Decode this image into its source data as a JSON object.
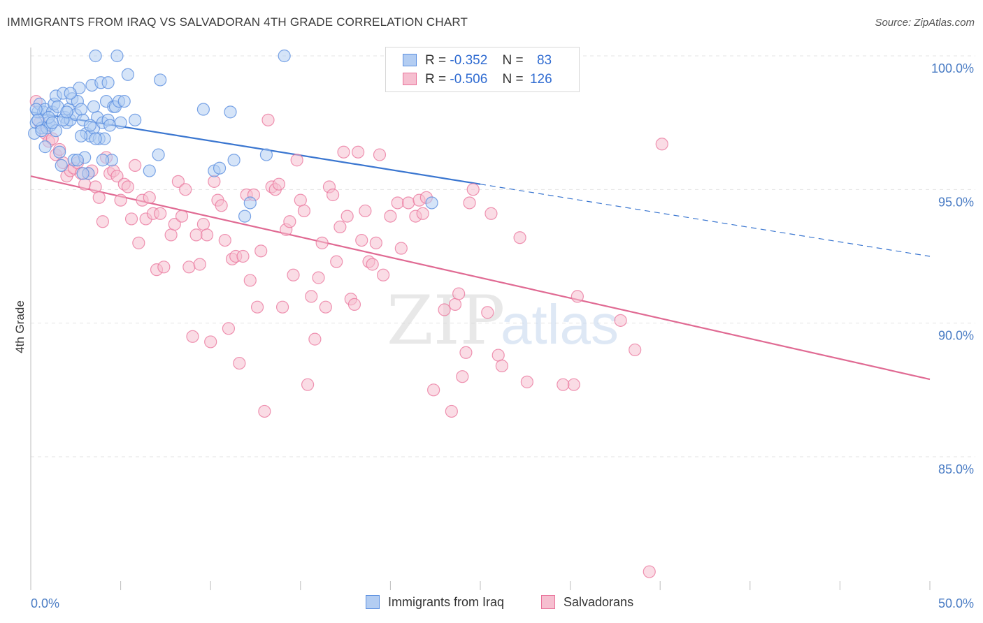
{
  "title": "IMMIGRANTS FROM IRAQ VS SALVADORAN 4TH GRADE CORRELATION CHART",
  "source": "Source: ZipAtlas.com",
  "watermark": {
    "zip": "ZIP",
    "atlas": "atlas"
  },
  "colors": {
    "blue": "#5b8fe0",
    "blue_fill": "#b3cdf2",
    "blue_line": "#3a76d0",
    "pink": "#e9729a",
    "pink_fill": "#f6bfd0",
    "pink_line": "#e06a93"
  },
  "legend": {
    "rows": [
      {
        "r_label": "R =",
        "r_value": "-0.352",
        "n_label": "N =",
        "n_value": "83"
      },
      {
        "r_label": "R =",
        "r_value": "-0.506",
        "n_label": "N =",
        "n_value": "126"
      }
    ]
  },
  "bottom_legend": {
    "series1": "Immigrants from Iraq",
    "series2": "Salvadorans"
  },
  "chart_data": {
    "type": "scatter",
    "title": "IMMIGRANTS FROM IRAQ VS SALVADORAN 4TH GRADE CORRELATION CHART",
    "xlabel": "",
    "ylabel": "4th Grade",
    "xlim": [
      0,
      50
    ],
    "ylim": [
      80.5,
      100.8
    ],
    "x_tick_labels": [
      "0.0%",
      "50.0%"
    ],
    "y_ticks": [
      85,
      90,
      95,
      100
    ],
    "y_tick_labels": [
      "85.0%",
      "90.0%",
      "95.0%",
      "100.0%"
    ],
    "grid": true,
    "legend_placement": "top-center",
    "series": [
      {
        "name": "Immigrants from Iraq",
        "r": -0.352,
        "n": 83,
        "trend": {
          "x_solid": [
            0,
            25
          ],
          "y_solid": [
            97.9,
            95.2
          ],
          "x_dash": [
            25,
            50
          ],
          "y_dash": [
            95.2,
            92.5
          ]
        },
        "points": [
          [
            0.2,
            97.1
          ],
          [
            0.3,
            97.5
          ],
          [
            0.4,
            97.9
          ],
          [
            0.5,
            98.2
          ],
          [
            0.6,
            97.3
          ],
          [
            0.7,
            97.9
          ],
          [
            0.8,
            98.0
          ],
          [
            0.9,
            97.3
          ],
          [
            1.0,
            97.5
          ],
          [
            1.1,
            97.4
          ],
          [
            1.2,
            97.9
          ],
          [
            1.3,
            98.2
          ],
          [
            1.4,
            98.5
          ],
          [
            1.5,
            98.1
          ],
          [
            1.6,
            96.4
          ],
          [
            1.7,
            95.9
          ],
          [
            1.8,
            98.6
          ],
          [
            1.9,
            97.7
          ],
          [
            2.0,
            97.5
          ],
          [
            2.1,
            98.0
          ],
          [
            2.2,
            97.6
          ],
          [
            2.3,
            98.4
          ],
          [
            2.4,
            96.1
          ],
          [
            2.5,
            97.8
          ],
          [
            2.6,
            98.3
          ],
          [
            2.7,
            98.8
          ],
          [
            2.8,
            98.0
          ],
          [
            2.9,
            97.6
          ],
          [
            3.0,
            96.2
          ],
          [
            3.1,
            97.1
          ],
          [
            3.2,
            95.6
          ],
          [
            3.3,
            97.0
          ],
          [
            3.4,
            98.9
          ],
          [
            3.5,
            97.3
          ],
          [
            3.6,
            100.0
          ],
          [
            3.7,
            97.7
          ],
          [
            3.8,
            96.9
          ],
          [
            3.9,
            99.0
          ],
          [
            4.0,
            97.5
          ],
          [
            4.1,
            96.9
          ],
          [
            4.2,
            98.3
          ],
          [
            4.3,
            97.6
          ],
          [
            4.4,
            97.4
          ],
          [
            4.5,
            96.1
          ],
          [
            4.6,
            98.1
          ],
          [
            4.7,
            98.1
          ],
          [
            4.8,
            100.0
          ],
          [
            4.9,
            98.3
          ],
          [
            5.0,
            97.5
          ],
          [
            5.2,
            98.3
          ],
          [
            5.4,
            99.3
          ],
          [
            5.8,
            97.6
          ],
          [
            6.6,
            95.7
          ],
          [
            7.1,
            96.3
          ],
          [
            7.2,
            99.1
          ],
          [
            9.6,
            98.0
          ],
          [
            10.2,
            95.7
          ],
          [
            10.5,
            95.8
          ],
          [
            11.1,
            97.9
          ],
          [
            11.3,
            96.1
          ],
          [
            11.9,
            94.0
          ],
          [
            12.2,
            94.5
          ],
          [
            13.1,
            96.3
          ],
          [
            14.1,
            100.0
          ],
          [
            22.3,
            94.5
          ],
          [
            0.3,
            98.0
          ],
          [
            0.6,
            97.2
          ],
          [
            0.8,
            96.6
          ],
          [
            1.0,
            97.7
          ],
          [
            1.4,
            97.2
          ],
          [
            1.8,
            97.6
          ],
          [
            2.2,
            98.6
          ],
          [
            2.6,
            96.1
          ],
          [
            2.9,
            95.6
          ],
          [
            3.3,
            97.4
          ],
          [
            3.6,
            96.9
          ],
          [
            4.0,
            96.1
          ],
          [
            0.4,
            97.6
          ],
          [
            1.2,
            97.5
          ],
          [
            2.0,
            97.9
          ],
          [
            2.8,
            97.0
          ],
          [
            3.5,
            98.1
          ],
          [
            4.3,
            99.0
          ]
        ]
      },
      {
        "name": "Salvadorans",
        "r": -0.506,
        "n": 126,
        "trend": {
          "x": [
            0,
            50
          ],
          "y": [
            95.5,
            87.9
          ]
        },
        "points": [
          [
            0.3,
            98.3
          ],
          [
            0.5,
            97.5
          ],
          [
            0.8,
            97.1
          ],
          [
            1.0,
            96.8
          ],
          [
            1.2,
            96.9
          ],
          [
            1.4,
            96.3
          ],
          [
            1.6,
            96.5
          ],
          [
            1.8,
            96.0
          ],
          [
            2.0,
            95.5
          ],
          [
            2.2,
            95.7
          ],
          [
            2.4,
            95.8
          ],
          [
            2.6,
            96.0
          ],
          [
            2.8,
            95.6
          ],
          [
            3.0,
            95.2
          ],
          [
            3.2,
            95.6
          ],
          [
            3.4,
            95.7
          ],
          [
            3.6,
            95.1
          ],
          [
            3.8,
            94.7
          ],
          [
            4.0,
            93.8
          ],
          [
            4.2,
            96.2
          ],
          [
            4.4,
            95.6
          ],
          [
            4.6,
            95.7
          ],
          [
            4.8,
            95.5
          ],
          [
            5.0,
            94.6
          ],
          [
            5.2,
            95.2
          ],
          [
            5.4,
            95.1
          ],
          [
            5.6,
            93.9
          ],
          [
            5.8,
            95.9
          ],
          [
            6.0,
            93.0
          ],
          [
            6.2,
            94.6
          ],
          [
            6.4,
            93.9
          ],
          [
            6.6,
            94.7
          ],
          [
            6.8,
            94.1
          ],
          [
            7.0,
            92.0
          ],
          [
            7.2,
            94.1
          ],
          [
            7.4,
            92.1
          ],
          [
            7.8,
            93.3
          ],
          [
            8.0,
            93.7
          ],
          [
            8.2,
            95.3
          ],
          [
            8.4,
            94.0
          ],
          [
            8.6,
            95.0
          ],
          [
            8.8,
            92.1
          ],
          [
            9.0,
            89.5
          ],
          [
            9.2,
            93.3
          ],
          [
            9.4,
            92.2
          ],
          [
            9.6,
            93.7
          ],
          [
            9.8,
            93.3
          ],
          [
            10.0,
            89.3
          ],
          [
            10.2,
            95.3
          ],
          [
            10.4,
            94.6
          ],
          [
            10.6,
            94.4
          ],
          [
            10.8,
            93.1
          ],
          [
            11.0,
            89.8
          ],
          [
            11.2,
            92.4
          ],
          [
            11.4,
            92.5
          ],
          [
            11.6,
            88.5
          ],
          [
            11.8,
            92.5
          ],
          [
            12.0,
            94.8
          ],
          [
            12.2,
            91.6
          ],
          [
            12.4,
            94.8
          ],
          [
            12.6,
            90.6
          ],
          [
            12.8,
            92.7
          ],
          [
            13.0,
            86.7
          ],
          [
            13.2,
            97.6
          ],
          [
            13.4,
            95.1
          ],
          [
            13.6,
            95.0
          ],
          [
            13.8,
            95.2
          ],
          [
            14.0,
            90.6
          ],
          [
            14.2,
            93.5
          ],
          [
            14.4,
            93.8
          ],
          [
            14.6,
            91.8
          ],
          [
            14.8,
            96.1
          ],
          [
            15.0,
            94.6
          ],
          [
            15.2,
            94.2
          ],
          [
            15.4,
            87.7
          ],
          [
            15.6,
            91.0
          ],
          [
            15.8,
            89.4
          ],
          [
            16.0,
            91.7
          ],
          [
            16.2,
            93.0
          ],
          [
            16.4,
            90.6
          ],
          [
            16.6,
            95.1
          ],
          [
            16.8,
            94.8
          ],
          [
            17.0,
            92.3
          ],
          [
            17.2,
            93.6
          ],
          [
            17.4,
            96.4
          ],
          [
            17.6,
            94.0
          ],
          [
            17.8,
            90.9
          ],
          [
            18.0,
            90.7
          ],
          [
            18.2,
            96.4
          ],
          [
            18.4,
            93.1
          ],
          [
            18.6,
            94.2
          ],
          [
            18.8,
            92.3
          ],
          [
            19.0,
            92.2
          ],
          [
            19.2,
            93.0
          ],
          [
            19.4,
            96.3
          ],
          [
            19.6,
            91.8
          ],
          [
            20.0,
            94.0
          ],
          [
            20.4,
            94.5
          ],
          [
            20.6,
            92.8
          ],
          [
            21.0,
            94.5
          ],
          [
            21.4,
            94.0
          ],
          [
            21.6,
            94.6
          ],
          [
            21.8,
            94.1
          ],
          [
            22.0,
            94.7
          ],
          [
            22.4,
            87.5
          ],
          [
            23.0,
            90.5
          ],
          [
            23.4,
            86.7
          ],
          [
            23.6,
            90.7
          ],
          [
            23.8,
            91.1
          ],
          [
            24.0,
            88.0
          ],
          [
            24.2,
            88.9
          ],
          [
            24.4,
            94.5
          ],
          [
            24.6,
            95.0
          ],
          [
            25.4,
            90.4
          ],
          [
            25.6,
            94.1
          ],
          [
            26.0,
            88.8
          ],
          [
            26.2,
            88.4
          ],
          [
            27.2,
            93.2
          ],
          [
            27.6,
            87.8
          ],
          [
            30.2,
            87.7
          ],
          [
            30.4,
            91.0
          ],
          [
            35.1,
            96.7
          ],
          [
            33.6,
            89.0
          ],
          [
            32.8,
            90.1
          ],
          [
            34.4,
            80.7
          ],
          [
            29.6,
            87.7
          ]
        ]
      }
    ]
  }
}
